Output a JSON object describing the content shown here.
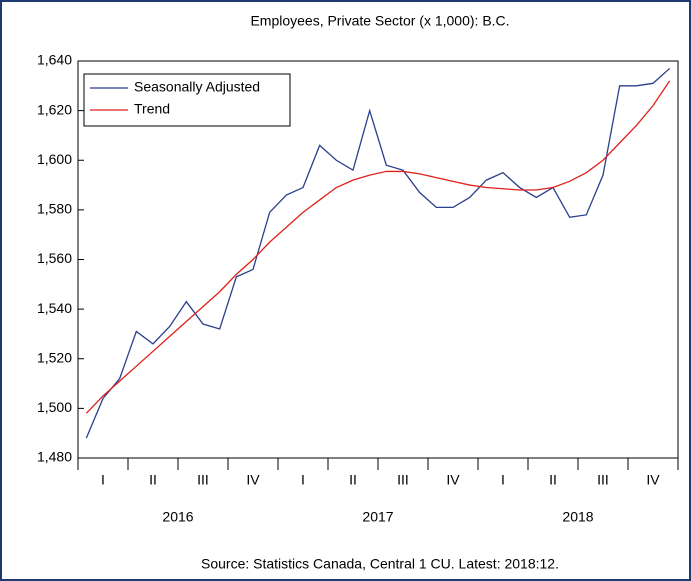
{
  "chart_data": {
    "type": "line",
    "title": "Employees, Private Sector (x 1,000): B.C.",
    "source": "Source: Statistics Canada, Central 1 CU. Latest: 2018:12.",
    "categories": [
      null,
      null,
      null,
      null,
      null,
      null,
      null,
      null,
      null,
      null,
      null,
      null,
      null,
      null,
      null,
      null,
      null,
      null,
      null,
      null,
      null,
      null,
      null,
      null,
      null,
      null,
      null,
      null,
      null,
      null,
      null,
      null,
      null,
      null,
      null,
      null
    ],
    "quarter_labels": [
      "I",
      "II",
      "III",
      "IV",
      "I",
      "II",
      "III",
      "IV",
      "I",
      "II",
      "III",
      "IV"
    ],
    "year_labels": [
      "2016",
      "2017",
      "2018"
    ],
    "series": [
      {
        "name": "Seasonally Adjusted",
        "color": "#2b3f8c",
        "values": [
          1488,
          1504,
          1512,
          1531,
          1526,
          1533,
          1543,
          1534,
          1532,
          1553,
          1556,
          1579,
          1586,
          1589,
          1606,
          1600,
          1596,
          1620,
          1598,
          1596,
          1587,
          1581,
          1581,
          1585,
          1592,
          1595,
          1589,
          1585,
          1589,
          1577,
          1578,
          1594,
          1630,
          1630,
          1631,
          1637
        ]
      },
      {
        "name": "Trend",
        "color": "#e0201b",
        "values": [
          1498,
          1505,
          1511,
          1517,
          1523,
          1529,
          1535,
          1541,
          1547,
          1554,
          1560,
          1567,
          1573,
          1579,
          1584,
          1589,
          1592,
          1594,
          1595.5,
          1595.5,
          1594.5,
          1593,
          1591.5,
          1590,
          1589,
          1588.5,
          1588,
          1588,
          1589,
          1591.5,
          1595,
          1600,
          1607,
          1614,
          1622,
          1632
        ]
      }
    ],
    "ylim": [
      1480,
      1640
    ],
    "yticks": [
      {
        "value": 1480,
        "label": "1,480"
      },
      {
        "value": 1500,
        "label": "1,500"
      },
      {
        "value": 1520,
        "label": "1,520"
      },
      {
        "value": 1540,
        "label": "1,540"
      },
      {
        "value": 1560,
        "label": "1,560"
      },
      {
        "value": 1580,
        "label": "1,580"
      },
      {
        "value": 1600,
        "label": "1,600"
      },
      {
        "value": 1620,
        "label": "1,620"
      },
      {
        "value": 1640,
        "label": "1,640"
      }
    ],
    "legend": "top-left",
    "grid": false
  }
}
